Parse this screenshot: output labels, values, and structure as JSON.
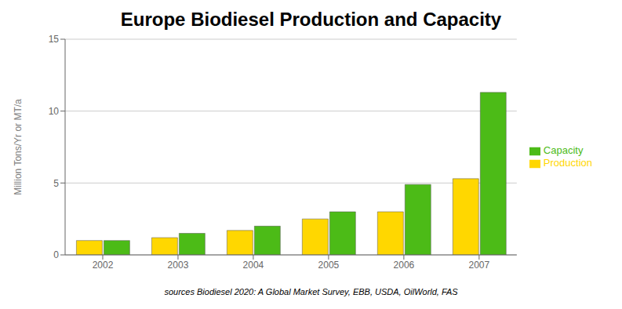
{
  "chart_data": {
    "type": "bar",
    "title": "Europe Biodiesel Production and Capacity",
    "ylabel": "Million Tons/Yr or MT/a",
    "annotations": [
      "sources Biodiesel 2020: A Global Market Survey, EBB, USDA, OilWorld, FAS"
    ],
    "categories": [
      "2002",
      "2003",
      "2004",
      "2005",
      "2006",
      "2007"
    ],
    "series": [
      {
        "name": "Production",
        "color": "#FFD700",
        "values": [
          1.0,
          1.2,
          1.7,
          2.5,
          3.0,
          5.3
        ]
      },
      {
        "name": "Capacity",
        "color": "#4CBB17",
        "values": [
          1.0,
          1.5,
          2.0,
          3.0,
          4.9,
          11.3
        ]
      }
    ],
    "ylim": [
      0,
      15
    ],
    "yticks": [
      0,
      5,
      10,
      15
    ],
    "grid": true,
    "legend": "right"
  }
}
